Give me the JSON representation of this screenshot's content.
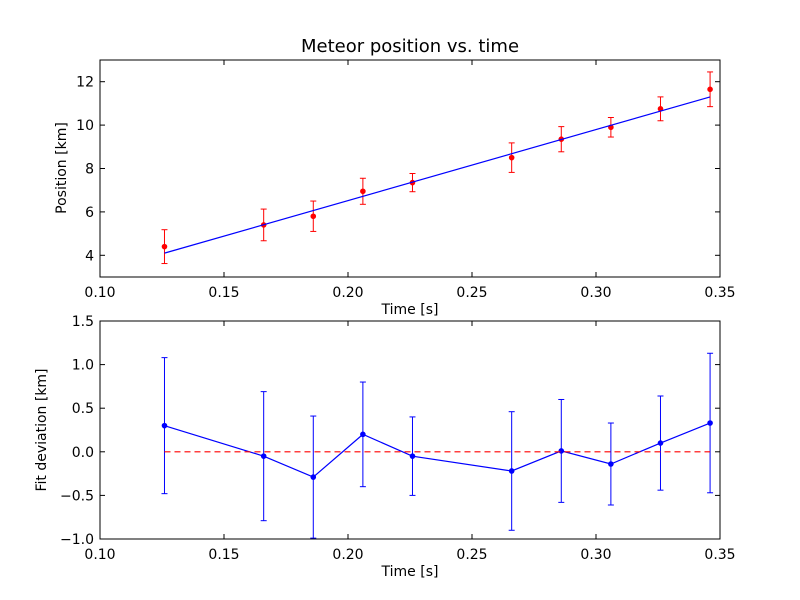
{
  "chart_data": [
    {
      "type": "scatter",
      "title": "Meteor position vs. time",
      "xlabel": "Time [s]",
      "ylabel": "Position [km]",
      "xlim": [
        0.1,
        0.35
      ],
      "ylim": [
        3.0,
        13.0
      ],
      "xticks": [
        "0.10",
        "0.15",
        "0.20",
        "0.25",
        "0.30",
        "0.35"
      ],
      "yticks": [
        "4",
        "6",
        "8",
        "10",
        "12"
      ],
      "grid": false,
      "series": [
        {
          "kind": "errorbar-points",
          "color": "#ff0000",
          "x": [
            0.126,
            0.166,
            0.186,
            0.206,
            0.226,
            0.266,
            0.286,
            0.306,
            0.326,
            0.346
          ],
          "y": [
            4.4,
            5.4,
            5.8,
            6.95,
            7.35,
            8.5,
            9.35,
            9.9,
            10.75,
            11.65
          ],
          "yerr": [
            0.78,
            0.73,
            0.7,
            0.6,
            0.42,
            0.68,
            0.58,
            0.45,
            0.55,
            0.8
          ]
        },
        {
          "kind": "fit-line",
          "color": "#0000ff",
          "x": [
            0.126,
            0.346
          ],
          "y": [
            4.1,
            11.3
          ]
        }
      ]
    },
    {
      "type": "line",
      "xlabel": "Time [s]",
      "ylabel": "Fit deviation [km]",
      "xlim": [
        0.1,
        0.35
      ],
      "ylim": [
        -1.0,
        1.5
      ],
      "xticks": [
        "0.10",
        "0.15",
        "0.20",
        "0.25",
        "0.30",
        "0.35"
      ],
      "yticks": [
        "−1.0",
        "−0.5",
        "0.0",
        "0.5",
        "1.0",
        "1.5"
      ],
      "grid": false,
      "series": [
        {
          "kind": "errorbar-line",
          "color": "#0000ff",
          "x": [
            0.126,
            0.166,
            0.186,
            0.206,
            0.226,
            0.266,
            0.286,
            0.306,
            0.326,
            0.346
          ],
          "y": [
            0.3,
            -0.05,
            -0.29,
            0.2,
            -0.05,
            -0.22,
            0.01,
            -0.14,
            0.1,
            0.33
          ],
          "yerr": [
            0.78,
            0.74,
            0.7,
            0.6,
            0.45,
            0.68,
            0.59,
            0.47,
            0.54,
            0.8
          ]
        },
        {
          "kind": "reference-line",
          "color": "#ff0000",
          "style": "dashed",
          "x": [
            0.126,
            0.346
          ],
          "y": [
            0.0,
            0.0
          ]
        }
      ]
    }
  ]
}
